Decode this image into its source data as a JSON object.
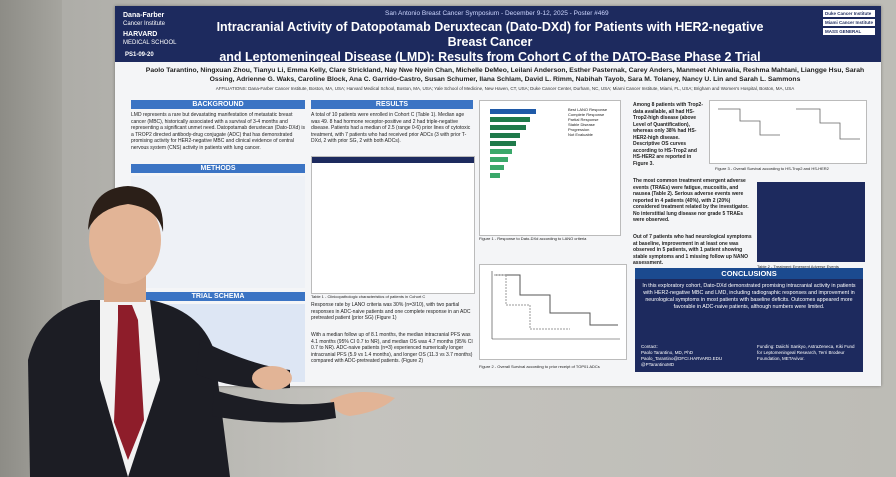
{
  "poster": {
    "meeting": "San Antonio Breast Cancer Symposium - December 9-12, 2025 - Poster #469",
    "title_line1": "Intracranial Activity of Datopotamab Deruxtecan (Dato-DXd) for Patients with HER2-negative Breast Cancer",
    "title_line2": "and Leptomeningeal Disease (LMD): Results from Cohort C of the DATO-Base Phase 2 Trial",
    "poster_id": "PS1-09-20",
    "logo_left_1": "Dana-Farber",
    "logo_left_2": "Cancer Institute",
    "logo_left_3": "HARVARD",
    "logo_left_4": "MEDICAL SCHOOL",
    "logo_right_1": "Duke Cancer Institute",
    "logo_right_2": "Miami Cancer Institute",
    "logo_right_3": "MASS GENERAL",
    "authors": "Paolo Tarantino, Ningxuan Zhou, Tianyu Li, Emma Kelly, Clare Strickland, Nay Nwe Nyein Chan, Michelle DeMeo, Leilani Anderson, Esther Pasternak, Carey Anders, Manmeet Ahluwalia, Reshma Mahtani, Liangge Hsu, Sarah Ossing, Adrienne G. Waks, Caroline Block, Ana C. Garrido-Castro, Susan Schumer, Ilana Schlam, David L. Rimm, Nabihah Tayob, Sara M. Tolaney, Nancy U. Lin and Sarah L. Sammons",
    "affiliations": "AFFILIATIONS: Dana-Farber Cancer Institute, Boston, MA, USA; Harvard Medical School, Boston, MA, USA; Yale School of Medicine, New Haven, CT, USA; Duke Cancer Center, Durham, NC, USA; Miami Cancer Institute, Miami, FL, USA; Brigham and Women's Hospital, Boston, MA, USA",
    "background_header": "BACKGROUND",
    "background_text": "LMD represents a rare but devastating manifestation of metastatic breast cancer (MBC), historically associated with a survival of 3-4 months and representing a significant unmet need. Datopotamab deruxtecan (Dato-DXd) is a TROP2 directed antibody-drug conjugate (ADC) that has demonstrated promising activity for HER2-negative MBC and clinical evidence of central nervous system (CNS) activity in patients with lung cancer.",
    "methods_header": "METHODS",
    "trial_schema_header": "TRIAL SCHEMA",
    "results_header": "RESULTS",
    "results_text": "A total of 10 patients were enrolled in Cohort C (Table 1). Median age was 49. 8 had hormone receptor-positive and 2 had triple-negative disease. Patients had a median of 2.5 (range 0-6) prior lines of cytotoxic treatment, with 7 patients who had received prior ADCs (3 with prior T-DXd, 2 with prior SG, 2 with both ADCs).",
    "table1_caption": "Table 1 - Clinicopathologic characteristics of patients in Cohort C",
    "results_text2": "Response rate by LANO criteria was 30% (n=3/10), with two partial responses in ADC-naive patients and one complete response in an ADC pretreated patient (prior SG) (Figure 1)",
    "results_text3": "With a median follow up of 8.1 months, the median intracranial PFS was 4.1 months (95% CI 0.7 to NR), and median OS was 4.7 months (95% CI 0.7 to NR). ADC-naive patients (n=3) experienced numerically longer intracranial PFS (5.9 vs 1.4 months), and longer OS (11.3 vs 3.7 months) compared with ADC-pretreated patients. (Figure 2)",
    "fig1_caption": "Figure 1 - Response to Dato-DXd according to LANO criteria",
    "fig2_caption": "Figure 2 - Overall Survival according to prior receipt of TOP01 ADCs",
    "legend_title": "Best LANO Response",
    "legend_items": [
      "Complete Response",
      "Partial Response",
      "Stable Disease",
      "Progression",
      "Not Evaluable"
    ],
    "trop2_text": "Among 8 patients with Trop2-data available, all had HS-Trop2-high disease (above Level of Quantification), whereas only 38% had HS-HER2-high disease. Descriptive OS curves according to HS-Trop2 and HS-HER2 are reported in Figure 3.",
    "fig3_caption": "Figure 3 - Overall Survival according to HS-Trop2 and HS-HER2",
    "teae_text": "The most common treatment emergent adverse events (TRAEs) were fatigue, mucositis, and nausea (Table 2). Serious adverse events were reported in 4 patients (40%), with 2 (20%) considered treatment related by the investigator. No interstitial lung disease nor grade 5 TRAEs were observed.",
    "neuro_text": "Out of 7 patients who had neurological symptoms at baseline, improvement in at least one was observed in 5 patients, with 1 patient showing stable symptoms and 1 missing follow up NANO assessment.",
    "table2_caption": "Table 2 - Treatment Emergent Adverse Events",
    "conclusions_header": "CONCLUSIONS",
    "conclusions_text": "In this exploratory cohort, Dato-DXd demonstrated promising intracranial activity in patients with HER2-negative MBC and LMD, including radiographic responses and improvement in neurological symptoms in most patients with baseline deficits. Outcomes appeared more favorable in ADC-naive patients, although numbers were limited.",
    "contact_label": "Contact:",
    "contact_name": "Paolo Tarantino, MD, PhD",
    "contact_email": "Paolo_Tarantino@DFCI.HARVARD.EDU",
    "contact_handle": "@PTarantinoMD",
    "funding": "Funding: Daiichi Sankyo, AstraZeneca, Kiki Fund for Leptomeningeal Research, Terri Brodeur Foundation, METAvivor."
  }
}
